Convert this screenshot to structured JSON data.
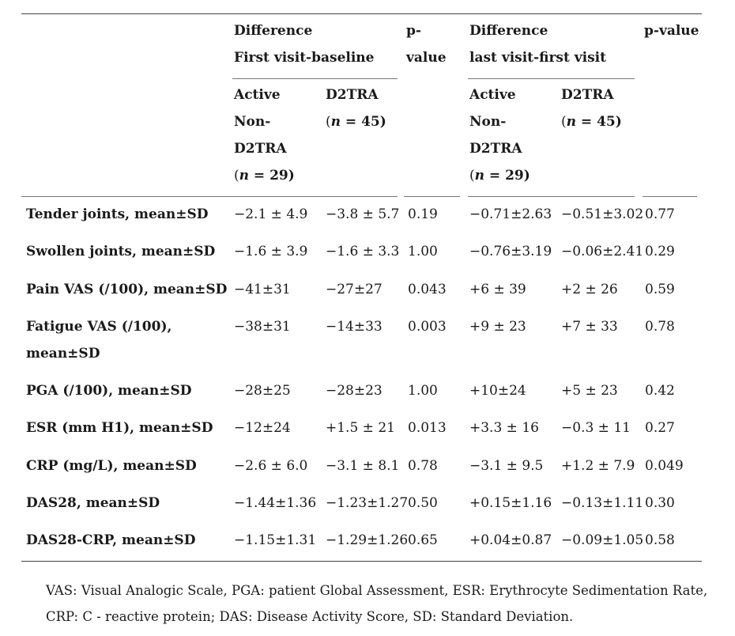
{
  "table": {
    "header": {
      "group1": [
        "Difference",
        "First visit-baseline"
      ],
      "pvalue1": [
        "p-",
        "value"
      ],
      "group2": [
        "Difference",
        "last visit-first visit"
      ],
      "pvalue2": "p-value",
      "sub_active": [
        "Active",
        "Non-",
        "D2TRA"
      ],
      "sub_active_n_italic": "n",
      "sub_active_n_rest": " = 29)",
      "sub_d2tra": "D2TRA",
      "sub_d2tra_n_italic": "n",
      "sub_d2tra_n_rest": " = 45)",
      "open_paren": "("
    },
    "rows": [
      {
        "label": "Tender joints, mean±SD",
        "a1": "−2.1 ± 4.9",
        "d1": "−3.8 ± 5.7",
        "p1": "0.19",
        "a2": "−0.71±2.63",
        "d2": "−0.51±3.02",
        "p2": "0.77"
      },
      {
        "label": "Swollen joints, mean±SD",
        "a1": "−1.6 ± 3.9",
        "d1": "−1.6 ± 3.3",
        "p1": "1.00",
        "a2": "−0.76±3.19",
        "d2": "−0.06±2.41",
        "p2": "0.29"
      },
      {
        "label": "Pain VAS (/100), mean±SD",
        "a1": "−41±31",
        "d1": "−27±27",
        "p1": "0.043",
        "a2": "+6 ± 39",
        "d2": "+2 ± 26",
        "p2": "0.59"
      },
      {
        "label": [
          "Fatigue VAS (/100),",
          "mean±SD"
        ],
        "a1": "−38±31",
        "d1": "−14±33",
        "p1": "0.003",
        "a2": "+9 ± 23",
        "d2": "+7 ± 33",
        "p2": "0.78"
      },
      {
        "label": "PGA (/100), mean±SD",
        "a1": "−28±25",
        "d1": "−28±23",
        "p1": "1.00",
        "a2": "+10±24",
        "d2": "+5 ± 23",
        "p2": "0.42"
      },
      {
        "label": "ESR (mm H1), mean±SD",
        "a1": "−12±24",
        "d1": "+1.5 ± 21",
        "p1": "0.013",
        "a2": "+3.3 ± 16",
        "d2": "−0.3 ± 11",
        "p2": "0.27"
      },
      {
        "label": "CRP (mg/L), mean±SD",
        "a1": "−2.6 ± 6.0",
        "d1": "−3.1 ± 8.1",
        "p1": "0.78",
        "a2": "−3.1 ± 9.5",
        "d2": "+1.2 ± 7.9",
        "p2": "0.049"
      },
      {
        "label": "DAS28, mean±SD",
        "a1": "−1.44±1.36",
        "d1": "−1.23±1.27",
        "p1": "0.50",
        "a2": "+0.15±1.16",
        "d2": "−0.13±1.11",
        "p2": "0.30"
      },
      {
        "label": "DAS28-CRP, mean±SD",
        "a1": "−1.15±1.31",
        "d1": "−1.29±1.26",
        "p1": "0.65",
        "a2": "+0.04±0.87",
        "d2": "−0.09±1.05",
        "p2": "0.58"
      }
    ]
  },
  "caption": [
    "VAS: Visual Analogic Scale, PGA: patient Global Assessment, ESR: Erythrocyte Sedimentation Rate,",
    "CRP: C - reactive protein; DAS: Disease Activity Score, SD: Standard Deviation."
  ]
}
